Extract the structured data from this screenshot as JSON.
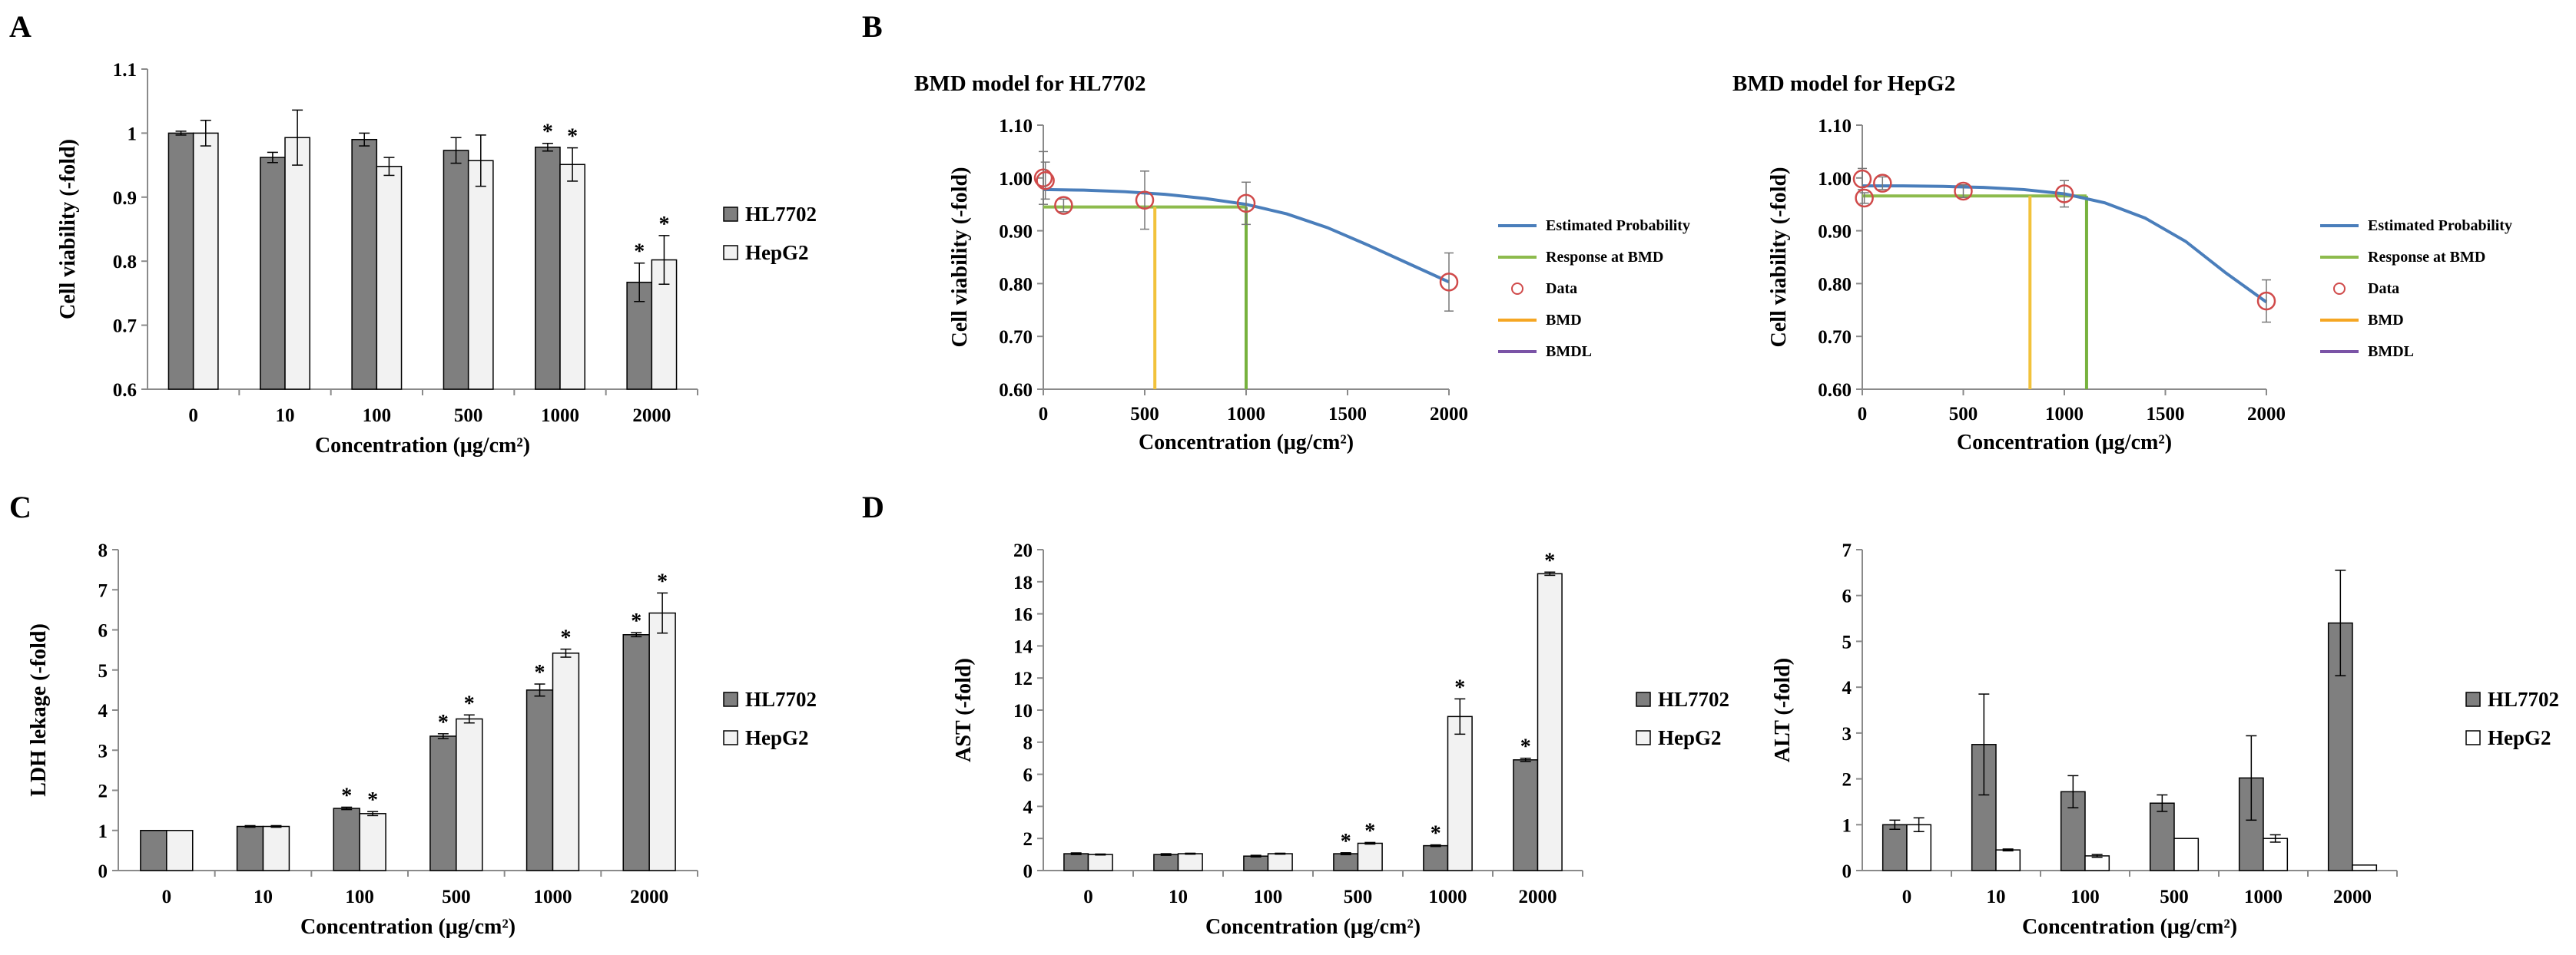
{
  "chart_data": [
    {
      "id": "A",
      "panel_label": "A",
      "type": "bar",
      "title": "",
      "xlabel": "Concentration (μg/cm²)",
      "ylabel": "Cell viability  (-fold)",
      "categories": [
        "0",
        "10",
        "100",
        "500",
        "1000",
        "2000"
      ],
      "ylim": [
        0.6,
        1.1
      ],
      "yticks": [
        0.6,
        0.7,
        0.8,
        0.9,
        1,
        1.1
      ],
      "ytick_labels": [
        "0.6",
        "0.7",
        "0.8",
        "0.9",
        "1",
        "1.1"
      ],
      "series": [
        {
          "name": "HL7702",
          "color": "#7f7f7f",
          "values": [
            1.0,
            0.962,
            0.99,
            0.973,
            0.978,
            0.767
          ],
          "errors": [
            0.003,
            0.008,
            0.01,
            0.02,
            0.006,
            0.03
          ],
          "sig": [
            false,
            false,
            false,
            false,
            true,
            true
          ]
        },
        {
          "name": "HepG2",
          "color": "#f2f2f2",
          "values": [
            1.0,
            0.993,
            0.948,
            0.957,
            0.951,
            0.802
          ],
          "errors": [
            0.02,
            0.043,
            0.014,
            0.04,
            0.026,
            0.038
          ],
          "sig": [
            false,
            false,
            false,
            false,
            true,
            true
          ]
        }
      ],
      "star": "*"
    },
    {
      "id": "B1",
      "panel_label": "B",
      "type": "line",
      "title": "BMD model for HL7702",
      "xlabel": "Concentration (μg/cm²)",
      "ylabel": "Cell viability  (-fold)",
      "xlim": [
        0,
        2000
      ],
      "ylim": [
        0.6,
        1.1
      ],
      "xticks": [
        0,
        500,
        1000,
        1500,
        2000
      ],
      "xtick_labels": [
        "0",
        "500",
        "1000",
        "1500",
        "2000"
      ],
      "yticks": [
        0.6,
        0.7,
        0.8,
        0.9,
        1.0,
        1.1
      ],
      "ytick_labels": [
        "0.60",
        "0.70",
        "0.80",
        "0.90",
        "1.00",
        "1.10"
      ],
      "curve": {
        "x": [
          0,
          200,
          400,
          600,
          800,
          1000,
          1200,
          1400,
          1600,
          1800,
          2000
        ],
        "y": [
          0.978,
          0.977,
          0.974,
          0.969,
          0.961,
          0.95,
          0.932,
          0.906,
          0.873,
          0.838,
          0.803
        ]
      },
      "data_points": {
        "x": [
          0,
          10,
          100,
          500,
          1000,
          2000
        ],
        "y": [
          1.0,
          0.995,
          0.948,
          0.958,
          0.952,
          0.803
        ],
        "errors": [
          0.05,
          0.035,
          0.012,
          0.055,
          0.04,
          0.055
        ]
      },
      "response_at_bmd": 0.945,
      "bmd": 550,
      "bmdl": 1000,
      "legend": [
        "Estimated Probability",
        "Response at BMD",
        "Data",
        "BMD",
        "BMDL"
      ],
      "colors": {
        "curve": "#4a7ebb",
        "response": "#8dbb4d",
        "data": "#d04a4a",
        "bmd": "#f5a623",
        "bmd_line": "#f2c23b",
        "bmdl": "#7a53a6",
        "bmdl_line": "#77b23e"
      }
    },
    {
      "id": "B2",
      "panel_label": "",
      "type": "line",
      "title": "BMD model for HepG2",
      "xlabel": "Concentration (μg/cm²)",
      "ylabel": "Cell viability  (-fold)",
      "xlim": [
        0,
        2000
      ],
      "ylim": [
        0.6,
        1.1
      ],
      "xticks": [
        0,
        500,
        1000,
        1500,
        2000
      ],
      "xtick_labels": [
        "0",
        "500",
        "1000",
        "1500",
        "2000"
      ],
      "yticks": [
        0.6,
        0.7,
        0.8,
        0.9,
        1.0,
        1.1
      ],
      "ytick_labels": [
        "0.60",
        "0.70",
        "0.80",
        "0.90",
        "1.00",
        "1.10"
      ],
      "curve": {
        "x": [
          0,
          200,
          400,
          600,
          800,
          1000,
          1200,
          1400,
          1600,
          1800,
          2000
        ],
        "y": [
          0.985,
          0.985,
          0.984,
          0.982,
          0.978,
          0.97,
          0.953,
          0.924,
          0.88,
          0.82,
          0.765
        ]
      },
      "data_points": {
        "x": [
          0,
          10,
          100,
          500,
          1000,
          2000
        ],
        "y": [
          0.998,
          0.962,
          0.99,
          0.975,
          0.97,
          0.767
        ],
        "errors": [
          0.02,
          0.01,
          0.012,
          0.012,
          0.025,
          0.04
        ]
      },
      "response_at_bmd": 0.966,
      "bmd": 830,
      "bmdl": 1110,
      "legend": [
        "Estimated Probability",
        "Response at BMD",
        "Data",
        "BMD",
        "BMDL"
      ],
      "colors": {
        "curve": "#4a7ebb",
        "response": "#8dbb4d",
        "data": "#d04a4a",
        "bmd": "#f5a623",
        "bmd_line": "#f2c23b",
        "bmdl": "#7a53a6",
        "bmdl_line": "#77b23e"
      }
    },
    {
      "id": "C",
      "panel_label": "C",
      "type": "bar",
      "title": "",
      "xlabel": "Concentration (μg/cm²)",
      "ylabel": "LDH lekage  (-fold)",
      "categories": [
        "0",
        "10",
        "100",
        "500",
        "1000",
        "2000"
      ],
      "ylim": [
        0,
        8
      ],
      "yticks": [
        0,
        1,
        2,
        3,
        4,
        5,
        6,
        7,
        8
      ],
      "ytick_labels": [
        "0",
        "1",
        "2",
        "3",
        "4",
        "5",
        "6",
        "7",
        "8"
      ],
      "series": [
        {
          "name": "HL7702",
          "color": "#7f7f7f",
          "values": [
            1.0,
            1.1,
            1.55,
            3.35,
            4.5,
            5.88
          ],
          "errors": [
            0.0,
            0.02,
            0.03,
            0.06,
            0.15,
            0.05
          ],
          "sig": [
            false,
            false,
            true,
            true,
            true,
            true
          ]
        },
        {
          "name": "HepG2",
          "color": "#f2f2f2",
          "values": [
            1.0,
            1.1,
            1.42,
            3.78,
            5.42,
            6.42
          ],
          "errors": [
            0.0,
            0.02,
            0.05,
            0.1,
            0.1,
            0.5
          ],
          "sig": [
            false,
            false,
            true,
            true,
            true,
            true
          ]
        }
      ],
      "star": "*"
    },
    {
      "id": "D1",
      "panel_label": "D",
      "type": "bar",
      "title": "",
      "xlabel": "Concentration (μg/cm²)",
      "ylabel": "AST  (-fold)",
      "categories": [
        "0",
        "10",
        "100",
        "500",
        "1000",
        "2000"
      ],
      "ylim": [
        0,
        20
      ],
      "yticks": [
        0,
        2,
        4,
        6,
        8,
        10,
        12,
        14,
        16,
        18,
        20
      ],
      "ytick_labels": [
        "0",
        "2",
        "4",
        "6",
        "8",
        "10",
        "12",
        "14",
        "16",
        "18",
        "20"
      ],
      "series": [
        {
          "name": "HL7702",
          "color": "#7f7f7f",
          "values": [
            1.05,
            1.0,
            0.9,
            1.05,
            1.55,
            6.9
          ],
          "errors": [
            0.05,
            0.05,
            0.05,
            0.06,
            0.05,
            0.1
          ],
          "sig": [
            false,
            false,
            false,
            true,
            true,
            true
          ]
        },
        {
          "name": "HepG2",
          "color": "#f2f2f2",
          "values": [
            1.0,
            1.05,
            1.05,
            1.7,
            9.6,
            18.5
          ],
          "errors": [
            0.03,
            0.03,
            0.03,
            0.05,
            1.1,
            0.1
          ],
          "sig": [
            false,
            false,
            false,
            true,
            true,
            true
          ]
        }
      ],
      "star": "*"
    },
    {
      "id": "D2",
      "panel_label": "",
      "type": "bar",
      "title": "",
      "xlabel": "Concentration (μg/cm²)",
      "ylabel": "ALT  (-fold)",
      "categories": [
        "0",
        "10",
        "100",
        "500",
        "1000",
        "2000"
      ],
      "ylim": [
        0,
        7
      ],
      "yticks": [
        0,
        1,
        2,
        3,
        4,
        5,
        6,
        7
      ],
      "ytick_labels": [
        "0",
        "1",
        "2",
        "3",
        "4",
        "5",
        "6",
        "7"
      ],
      "series": [
        {
          "name": "HL7702",
          "color": "#7f7f7f",
          "values": [
            1.0,
            2.75,
            1.72,
            1.47,
            2.02,
            5.4
          ],
          "errors": [
            0.1,
            1.1,
            0.35,
            0.18,
            0.92,
            1.15
          ],
          "sig": [
            false,
            false,
            false,
            false,
            false,
            false
          ]
        },
        {
          "name": "HepG2",
          "color": "#ffffff",
          "values": [
            1.0,
            0.45,
            0.32,
            0.7,
            0.7,
            0.12
          ],
          "errors": [
            0.15,
            0.02,
            0.03,
            0.0,
            0.08,
            0.0
          ],
          "sig": [
            false,
            false,
            false,
            false,
            false,
            false
          ]
        }
      ],
      "star": "*"
    }
  ]
}
